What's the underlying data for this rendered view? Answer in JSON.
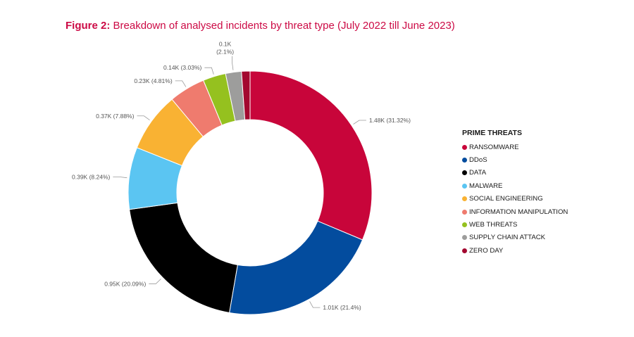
{
  "figure": {
    "number": "Figure 2:",
    "caption": "Breakdown of analysed incidents by threat type (July 2022 till June 2023)"
  },
  "chart_data": {
    "type": "donut",
    "title": "Breakdown of analysed incidents by threat type (July 2022 till June 2023)",
    "legend_title": "PRIME THREATS",
    "legend_position": "right",
    "slices": [
      {
        "name": "RANSOMWARE",
        "value": 1.48,
        "percent": 31.32,
        "label": "1.48K (31.32%)",
        "color": "#c8053a"
      },
      {
        "name": "DDoS",
        "value": 1.01,
        "percent": 21.4,
        "label": "1.01K (21.4%)",
        "color": "#034c9e"
      },
      {
        "name": "DATA",
        "value": 0.95,
        "percent": 20.09,
        "label": "0.95K (20.09%)",
        "color": "#000000"
      },
      {
        "name": "MALWARE",
        "value": 0.39,
        "percent": 8.24,
        "label": "0.39K (8.24%)",
        "color": "#5bc5f2"
      },
      {
        "name": "SOCIAL ENGINEERING",
        "value": 0.37,
        "percent": 7.88,
        "label": "0.37K (7.88%)",
        "color": "#f9b233"
      },
      {
        "name": "INFORMATION MANIPULATION",
        "value": 0.23,
        "percent": 4.81,
        "label": "0.23K (4.81%)",
        "color": "#ef7b6e"
      },
      {
        "name": "WEB THREATS",
        "value": 0.14,
        "percent": 3.03,
        "label": "0.14K (3.03%)",
        "color": "#95c11f"
      },
      {
        "name": "SUPPLY CHAIN ATTACK",
        "value": 0.1,
        "percent": 2.1,
        "label_lines": [
          "0.1K",
          "(2.1%)"
        ],
        "color": "#9d9d9c"
      },
      {
        "name": "ZERO DAY",
        "value": 0.05,
        "percent": 1.13,
        "color": "#a3082f"
      }
    ]
  }
}
